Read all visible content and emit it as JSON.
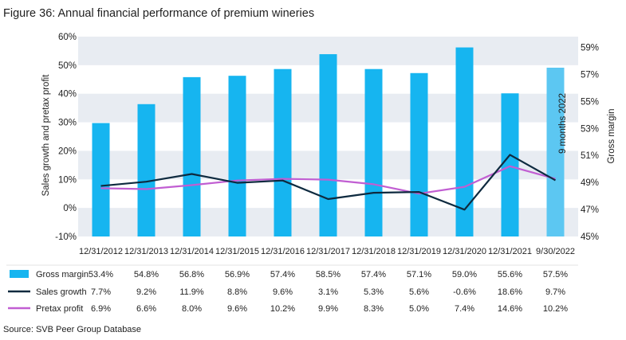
{
  "chart_data": {
    "type": "bar",
    "title": "Figure 36: Annual financial performance of premium wineries",
    "source": "Source: SVB Peer Group Database",
    "left_axis_label": "Sales growth and pretax profit",
    "right_axis_label": "Gross margin",
    "annotation": "9 months 2022",
    "left_ticks": [
      "60%",
      "50%",
      "40%",
      "30%",
      "20%",
      "10%",
      "0%",
      "-10%"
    ],
    "left_tick_values": [
      60,
      50,
      40,
      30,
      20,
      10,
      0,
      -10
    ],
    "right_ticks": [
      "59%",
      "57%",
      "55%",
      "53%",
      "51%",
      "49%",
      "47%",
      "45%"
    ],
    "right_tick_values": [
      59,
      57,
      55,
      53,
      51,
      49,
      47,
      45
    ],
    "left_ylim": [
      -10,
      60
    ],
    "right_ylim": [
      45,
      59.8
    ],
    "categories": [
      "12/31/2012",
      "12/31/2013",
      "12/31/2014",
      "12/31/2015",
      "12/31/2016",
      "12/31/2017",
      "12/31/2018",
      "12/31/2019",
      "12/31/2020",
      "12/31/2021",
      "9/30/2022"
    ],
    "series": [
      {
        "name": "Gross margin",
        "type": "bar",
        "axis": "right",
        "color": "#16b5f0",
        "highlight_color": "#5cc7f2",
        "values": [
          53.4,
          54.8,
          56.8,
          56.9,
          57.4,
          58.5,
          57.4,
          57.1,
          59.0,
          55.6,
          57.5
        ],
        "labels": [
          "53.4%",
          "54.8%",
          "56.8%",
          "56.9%",
          "57.4%",
          "58.5%",
          "57.4%",
          "57.1%",
          "59.0%",
          "55.6%",
          "57.5%"
        ]
      },
      {
        "name": "Sales growth",
        "type": "line",
        "axis": "left",
        "color": "#0e2a3f",
        "values": [
          7.7,
          9.2,
          11.9,
          8.8,
          9.6,
          3.1,
          5.3,
          5.6,
          -0.6,
          18.6,
          9.7
        ],
        "labels": [
          "7.7%",
          "9.2%",
          "11.9%",
          "8.8%",
          "9.6%",
          "3.1%",
          "5.3%",
          "5.6%",
          "-0.6%",
          "18.6%",
          "9.7%"
        ]
      },
      {
        "name": "Pretax profit",
        "type": "line",
        "axis": "left",
        "color": "#c15ed2",
        "values": [
          6.9,
          6.6,
          8.0,
          9.6,
          10.2,
          9.9,
          8.3,
          5.0,
          7.4,
          14.6,
          10.2
        ],
        "labels": [
          "6.9%",
          "6.6%",
          "8.0%",
          "9.6%",
          "10.2%",
          "9.9%",
          "8.3%",
          "5.0%",
          "7.4%",
          "14.6%",
          "10.2%"
        ]
      }
    ]
  }
}
